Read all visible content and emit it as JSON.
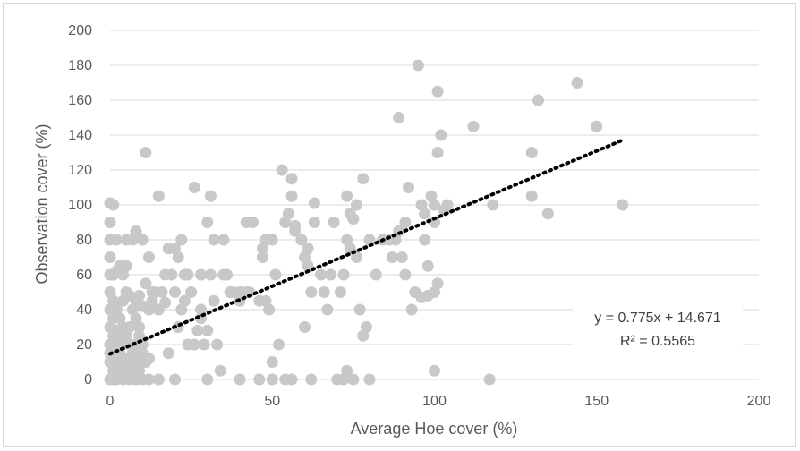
{
  "chart_data": {
    "type": "scatter",
    "title": "",
    "xlabel": "Average Hoe cover (%)",
    "ylabel": "Observation cover (%)",
    "xlim": [
      0,
      200
    ],
    "ylim": [
      0,
      200
    ],
    "xticks": [
      "0",
      "50",
      "100",
      "150",
      "200"
    ],
    "yticks": [
      "0",
      "20",
      "40",
      "60",
      "80",
      "100",
      "120",
      "140",
      "160",
      "180",
      "200"
    ],
    "grid": "horizontal",
    "marker_color": "#c8c8c8",
    "trendline_color": "#000000",
    "trendline": {
      "type": "linear",
      "slope": 0.775,
      "intercept": 14.671,
      "x_range": [
        0,
        158
      ],
      "equation_label": "y = 0.775x + 14.671",
      "r2_label": "R² = 0.5565"
    },
    "points": [
      [
        0,
        101
      ],
      [
        1,
        100
      ],
      [
        0,
        90
      ],
      [
        0,
        80
      ],
      [
        2,
        80
      ],
      [
        0,
        70
      ],
      [
        0,
        60
      ],
      [
        1,
        60
      ],
      [
        2,
        62
      ],
      [
        3,
        65
      ],
      [
        4,
        60
      ],
      [
        5,
        65
      ],
      [
        5,
        80
      ],
      [
        7,
        80
      ],
      [
        8,
        85
      ],
      [
        10,
        80
      ],
      [
        11,
        130
      ],
      [
        12,
        70
      ],
      [
        13,
        50
      ],
      [
        15,
        105
      ],
      [
        17,
        60
      ],
      [
        18,
        75
      ],
      [
        20,
        75
      ],
      [
        21,
        70
      ],
      [
        22,
        80
      ],
      [
        23,
        60
      ],
      [
        24,
        60
      ],
      [
        26,
        110
      ],
      [
        28,
        40
      ],
      [
        28,
        60
      ],
      [
        30,
        90
      ],
      [
        31,
        105
      ],
      [
        32,
        80
      ],
      [
        35,
        80
      ],
      [
        37,
        50
      ],
      [
        40,
        50
      ],
      [
        42,
        90
      ],
      [
        43,
        50
      ],
      [
        47,
        75
      ],
      [
        47,
        70
      ],
      [
        48,
        80
      ],
      [
        50,
        80
      ],
      [
        51,
        60
      ],
      [
        53,
        120
      ],
      [
        54,
        90
      ],
      [
        55,
        95
      ],
      [
        56,
        105
      ],
      [
        56,
        115
      ],
      [
        57,
        88
      ],
      [
        59,
        80
      ],
      [
        60,
        70
      ],
      [
        61,
        65
      ],
      [
        62,
        50
      ],
      [
        63,
        90
      ],
      [
        63,
        101
      ],
      [
        65,
        60
      ],
      [
        66,
        50
      ],
      [
        67,
        40
      ],
      [
        69,
        90
      ],
      [
        71,
        50
      ],
      [
        72,
        60
      ],
      [
        73,
        105
      ],
      [
        73,
        80
      ],
      [
        74,
        95
      ],
      [
        74,
        75
      ],
      [
        75,
        92
      ],
      [
        76,
        100
      ],
      [
        76,
        70
      ],
      [
        77,
        40
      ],
      [
        78,
        25
      ],
      [
        78,
        115
      ],
      [
        79,
        30
      ],
      [
        80,
        80
      ],
      [
        82,
        60
      ],
      [
        84,
        80
      ],
      [
        86,
        80
      ],
      [
        87,
        70
      ],
      [
        88,
        80
      ],
      [
        89,
        150
      ],
      [
        89,
        85
      ],
      [
        90,
        70
      ],
      [
        91,
        90
      ],
      [
        91,
        60
      ],
      [
        92,
        110
      ],
      [
        93,
        40
      ],
      [
        94,
        50
      ],
      [
        95,
        180
      ],
      [
        96,
        100
      ],
      [
        97,
        80
      ],
      [
        97,
        95
      ],
      [
        98,
        65
      ],
      [
        99,
        105
      ],
      [
        100,
        100
      ],
      [
        100,
        90
      ],
      [
        101,
        165
      ],
      [
        101,
        130
      ],
      [
        102,
        140
      ],
      [
        103,
        97
      ],
      [
        104,
        100
      ],
      [
        96,
        47
      ],
      [
        98,
        48
      ],
      [
        100,
        50
      ],
      [
        101,
        55
      ],
      [
        112,
        145
      ],
      [
        117,
        0
      ],
      [
        118,
        100
      ],
      [
        130,
        130
      ],
      [
        130,
        105
      ],
      [
        132,
        160
      ],
      [
        135,
        95
      ],
      [
        144,
        170
      ],
      [
        150,
        145
      ],
      [
        158,
        100
      ],
      [
        0,
        50
      ],
      [
        1,
        45
      ],
      [
        2,
        40
      ],
      [
        3,
        35
      ],
      [
        4,
        45
      ],
      [
        5,
        50
      ],
      [
        6,
        48
      ],
      [
        7,
        40
      ],
      [
        8,
        35
      ],
      [
        9,
        30
      ],
      [
        10,
        42
      ],
      [
        11,
        55
      ],
      [
        12,
        40
      ],
      [
        13,
        45
      ],
      [
        15,
        40
      ],
      [
        17,
        44
      ],
      [
        18,
        15
      ],
      [
        20,
        50
      ],
      [
        21,
        30
      ],
      [
        22,
        40
      ],
      [
        24,
        20
      ],
      [
        25,
        50
      ],
      [
        26,
        20
      ],
      [
        28,
        35
      ],
      [
        29,
        20
      ],
      [
        30,
        28
      ],
      [
        31,
        60
      ],
      [
        32,
        45
      ],
      [
        33,
        20
      ],
      [
        34,
        5
      ],
      [
        36,
        60
      ],
      [
        38,
        50
      ],
      [
        40,
        45
      ],
      [
        42,
        50
      ],
      [
        46,
        45
      ],
      [
        48,
        45
      ],
      [
        49,
        40
      ],
      [
        50,
        10
      ],
      [
        52,
        20
      ],
      [
        54,
        0
      ],
      [
        56,
        0
      ],
      [
        60,
        30
      ],
      [
        62,
        0
      ],
      [
        70,
        0
      ],
      [
        72,
        0
      ],
      [
        73,
        5
      ],
      [
        75,
        0
      ],
      [
        80,
        0
      ],
      [
        100,
        5
      ],
      [
        46,
        0
      ],
      [
        50,
        0
      ],
      [
        40,
        0
      ],
      [
        30,
        0
      ],
      [
        20,
        0
      ],
      [
        15,
        0
      ],
      [
        12,
        0
      ],
      [
        10,
        0
      ],
      [
        8,
        0
      ],
      [
        6,
        0
      ],
      [
        4,
        0
      ],
      [
        2,
        0
      ],
      [
        0,
        0
      ],
      [
        1,
        5
      ],
      [
        2,
        10
      ],
      [
        3,
        15
      ],
      [
        4,
        20
      ],
      [
        5,
        25
      ],
      [
        6,
        20
      ],
      [
        7,
        15
      ],
      [
        8,
        10
      ],
      [
        9,
        5
      ],
      [
        10,
        15
      ],
      [
        11,
        10
      ],
      [
        12,
        12
      ],
      [
        0,
        20
      ],
      [
        0,
        30
      ],
      [
        0,
        40
      ],
      [
        1,
        25
      ],
      [
        1,
        35
      ],
      [
        2,
        20
      ],
      [
        2,
        28
      ],
      [
        3,
        5
      ],
      [
        3,
        8
      ],
      [
        4,
        10
      ],
      [
        5,
        2
      ],
      [
        6,
        5
      ],
      [
        7,
        8
      ],
      [
        8,
        20
      ],
      [
        9,
        25
      ],
      [
        10,
        20
      ],
      [
        0,
        10
      ],
      [
        0,
        15
      ],
      [
        1,
        0
      ],
      [
        1,
        12
      ],
      [
        2,
        3
      ],
      [
        3,
        22
      ],
      [
        4,
        30
      ],
      [
        5,
        12
      ],
      [
        6,
        30
      ],
      [
        7,
        3
      ],
      [
        8,
        45
      ],
      [
        9,
        48
      ],
      [
        14,
        50
      ],
      [
        16,
        50
      ],
      [
        19,
        60
      ],
      [
        23,
        45
      ],
      [
        27,
        28
      ],
      [
        35,
        60
      ],
      [
        44,
        90
      ],
      [
        57,
        85
      ],
      [
        61,
        75
      ],
      [
        68,
        60
      ]
    ]
  }
}
